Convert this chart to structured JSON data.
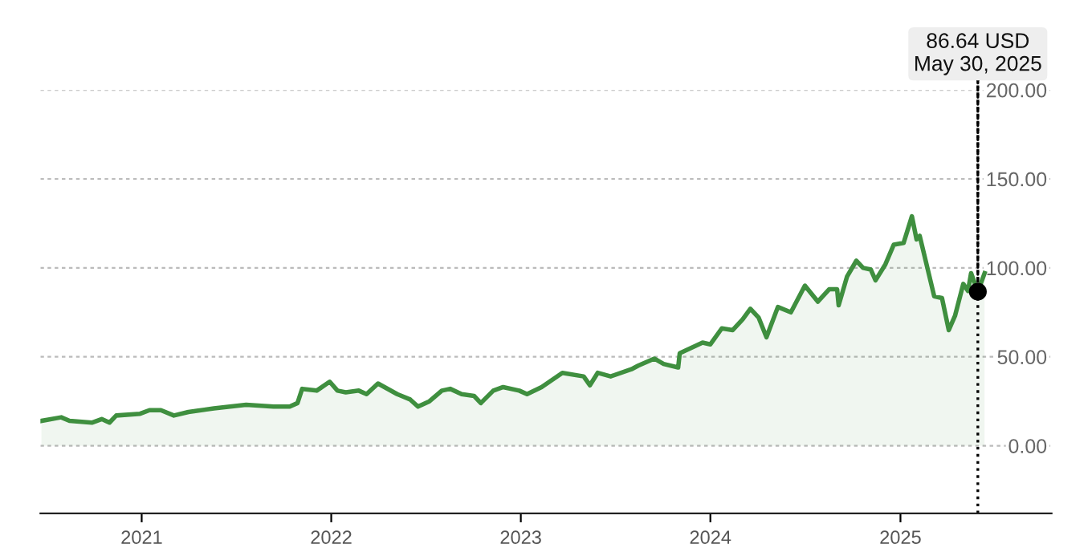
{
  "chart_data": {
    "type": "area",
    "color": "#3f8f3f",
    "x": [
      "2020-06-22",
      "2020-07-30",
      "2020-08-15",
      "2020-09-27",
      "2020-10-16",
      "2020-10-31",
      "2020-11-13",
      "2020-12-29",
      "2021-01-16",
      "2021-02-07",
      "2021-03-04",
      "2021-04-01",
      "2021-05-20",
      "2021-06-20",
      "2021-07-21",
      "2021-09-12",
      "2021-10-13",
      "2021-10-28",
      "2021-11-06",
      "2021-12-04",
      "2021-12-29",
      "2022-01-13",
      "2022-01-29",
      "2022-02-23",
      "2022-03-10",
      "2022-04-01",
      "2022-05-08",
      "2022-06-02",
      "2022-06-17",
      "2022-07-09",
      "2022-08-02",
      "2022-08-18",
      "2022-09-09",
      "2022-10-03",
      "2022-10-16",
      "2022-11-09",
      "2022-11-28",
      "2022-12-29",
      "2023-01-13",
      "2023-02-10",
      "2023-03-22",
      "2023-05-02",
      "2023-05-14",
      "2023-05-29",
      "2023-06-23",
      "2023-08-02",
      "2023-08-15",
      "2023-09-15",
      "2023-10-03",
      "2023-10-31",
      "2023-11-03",
      "2023-12-17",
      "2024-01-01",
      "2024-01-23",
      "2024-02-13",
      "2024-03-03",
      "2024-03-18",
      "2024-04-03",
      "2024-04-18",
      "2024-05-10",
      "2024-06-04",
      "2024-07-01",
      "2024-07-26",
      "2024-08-17",
      "2024-09-01",
      "2024-09-04",
      "2024-09-20",
      "2024-10-08",
      "2024-10-21",
      "2024-11-05",
      "2024-11-14",
      "2024-12-03",
      "2024-12-19",
      "2025-01-07",
      "2025-01-23",
      "2025-02-01",
      "2025-02-07",
      "2025-03-07",
      "2025-03-22",
      "2025-04-04",
      "2025-04-16",
      "2025-05-02",
      "2025-05-11",
      "2025-05-17",
      "2025-05-30",
      "2025-06-12"
    ],
    "values": [
      14,
      16,
      14,
      13,
      15,
      13,
      17,
      18,
      20,
      20,
      17,
      19,
      21,
      22,
      23,
      22,
      22,
      24,
      32,
      31,
      36,
      31,
      30,
      31,
      29,
      35,
      29,
      26,
      22,
      25,
      31,
      32,
      29,
      28,
      24,
      31,
      33,
      31,
      29,
      33,
      41,
      39,
      34,
      41,
      39,
      43,
      45,
      49,
      46,
      44,
      52,
      58,
      57,
      66,
      65,
      71,
      77,
      72,
      61,
      78,
      75,
      90,
      81,
      88,
      88,
      79,
      95,
      104,
      100,
      99,
      93,
      102,
      113,
      114,
      129,
      116,
      118,
      84,
      83,
      65,
      73,
      91,
      87,
      97,
      86.64,
      97
    ],
    "xlim": [
      "2020-06-20",
      "2025-10-19"
    ],
    "xticks": [
      "2021",
      "2022",
      "2023",
      "2024",
      "2025"
    ],
    "ylim": [
      -38,
      200
    ],
    "yticks": [
      {
        "value": 0,
        "label": "0.00"
      },
      {
        "value": 50,
        "label": "50.00"
      },
      {
        "value": 100,
        "label": "100.00"
      },
      {
        "value": 150,
        "label": "150.00"
      },
      {
        "value": 200,
        "label": "200.00"
      }
    ],
    "grid": "y",
    "ref_lines": [
      {
        "axis": "x",
        "value": "2025-05-30",
        "color": "#000000",
        "line_style": "dotted"
      }
    ],
    "annotations": [
      {
        "text": "86.64 USD\nMay 30, 2025",
        "x": "2025-05-30",
        "y": 86.64
      }
    ]
  }
}
